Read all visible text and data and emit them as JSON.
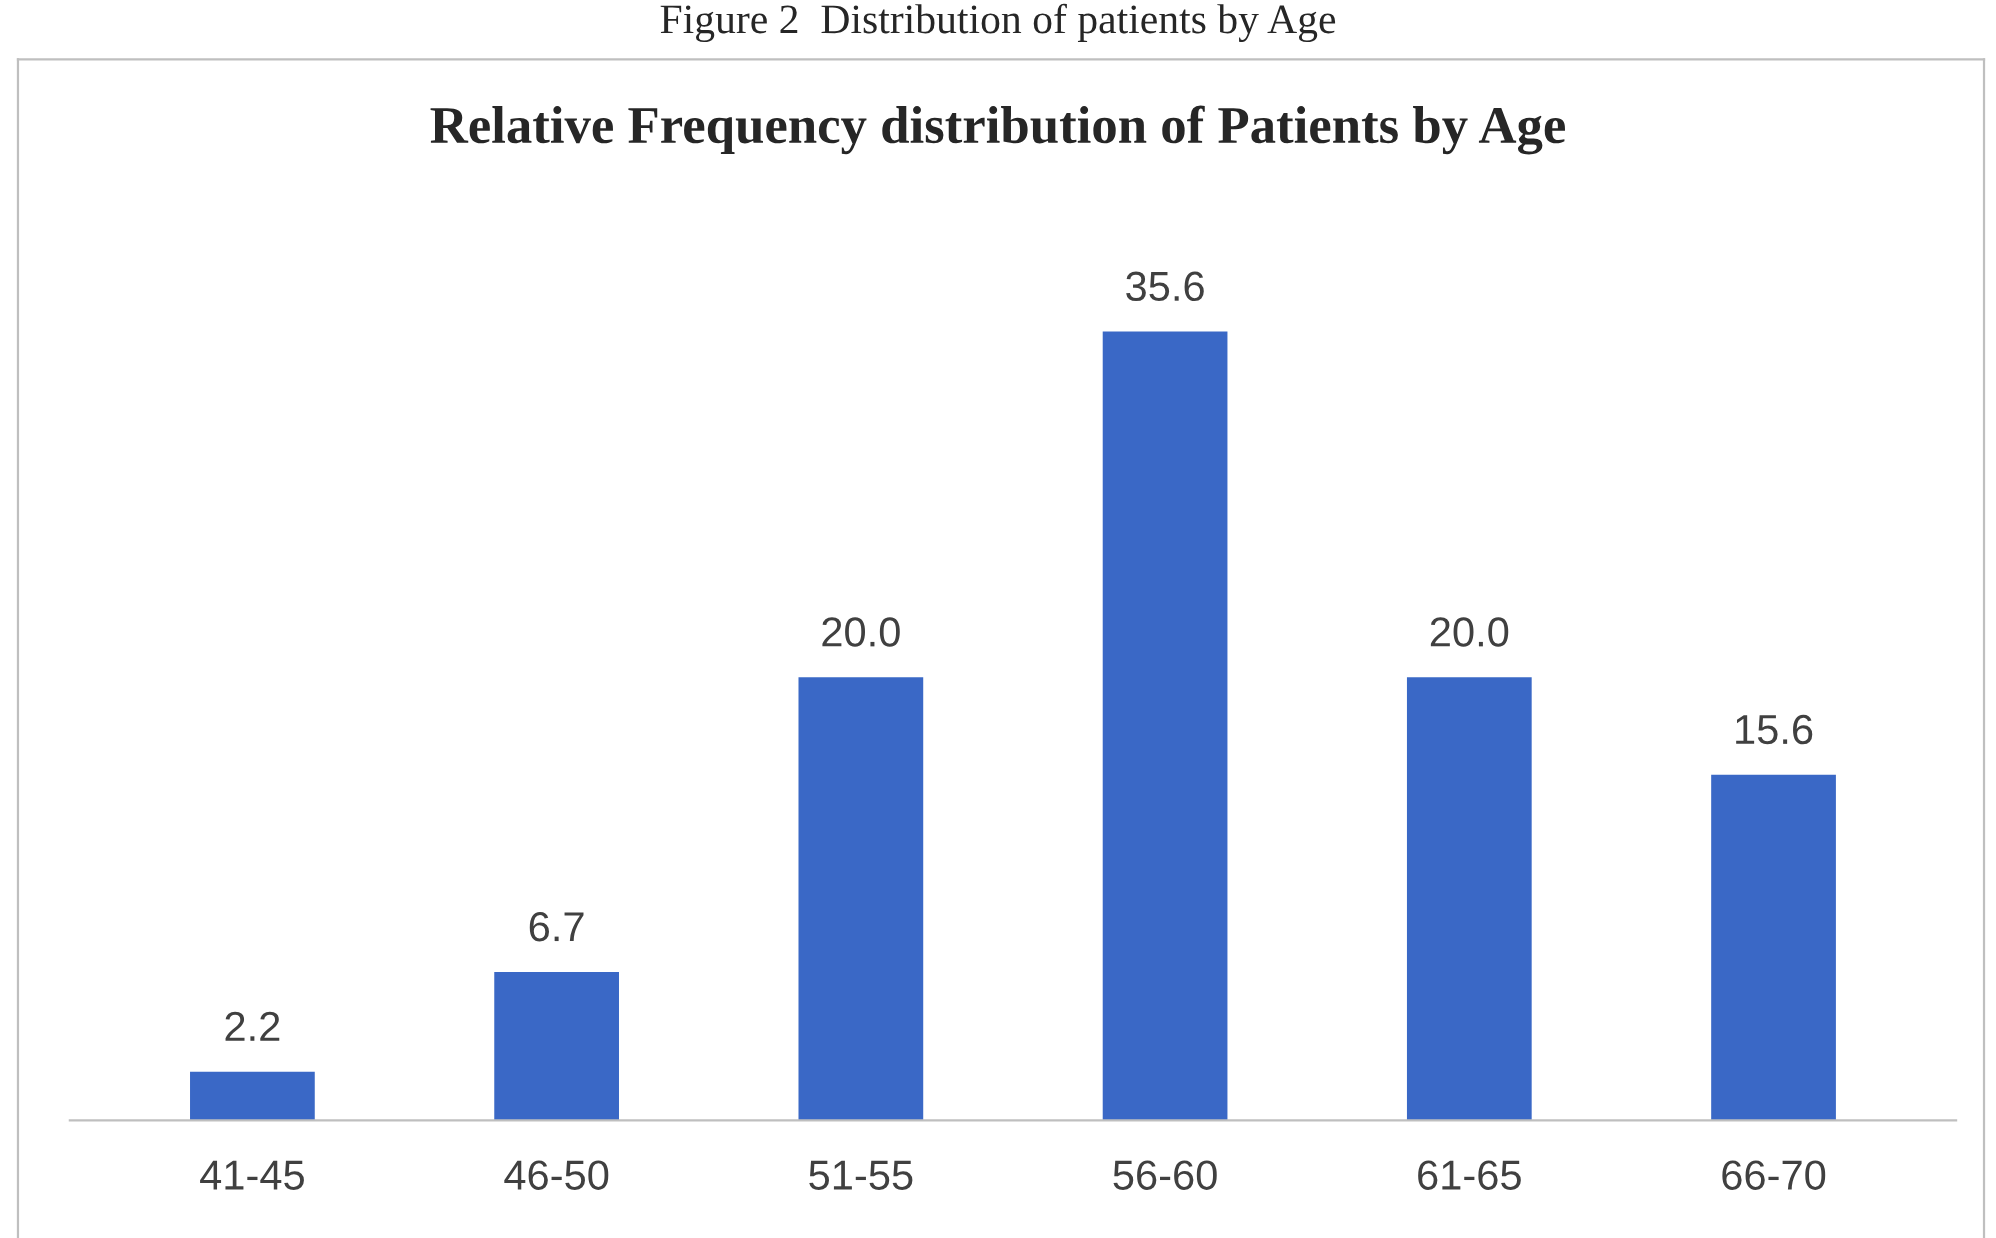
{
  "chart_data": {
    "type": "bar",
    "title": "Relative Frequency distribution of Patients by Age",
    "annotations": [
      "Figure 2  Distribution of patients by Age"
    ],
    "categories": [
      "41-45",
      "46-50",
      "51-55",
      "56-60",
      "61-65",
      "66-70"
    ],
    "values": [
      2.2,
      6.7,
      20.0,
      35.6,
      20.0,
      15.6
    ],
    "value_labels": [
      "2.2",
      "6.7",
      "20.0",
      "35.6",
      "20.0",
      "15.6"
    ],
    "color": "#3a68c6",
    "grid": false,
    "legend": false
  }
}
